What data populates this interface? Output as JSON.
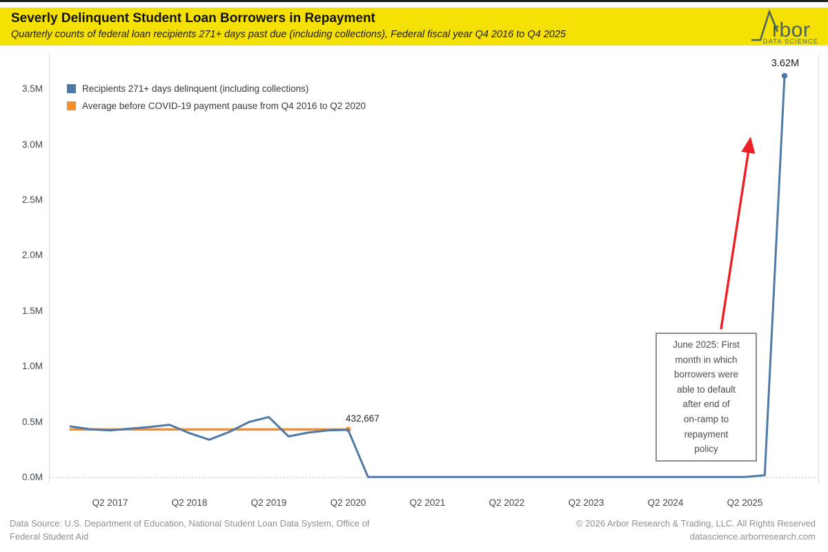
{
  "header": {
    "title": "Severly Delinquent Student Loan Borrowers in Repayment",
    "subtitle": "Quarterly counts of federal loan recipients 271+ days past due (including collections), Federal fiscal year Q4 2016 to Q4 2025",
    "background": "#F5E003",
    "logo": {
      "brand": "rbor",
      "tagline": "DATA SCIENCE",
      "color": "#4A635D"
    }
  },
  "chart_data": {
    "type": "line",
    "title": "Severly Delinquent Student Loan Borrowers in Repayment",
    "xlabel": "",
    "ylabel": "",
    "unit": "millions of recipients",
    "ylim": [
      0,
      3.7
    ],
    "grid": "zero-line only (dotted)",
    "legend_position": "top-left inside plot",
    "x": [
      "Q4 2016",
      "Q1 2017",
      "Q2 2017",
      "Q3 2017",
      "Q4 2017",
      "Q1 2018",
      "Q2 2018",
      "Q3 2018",
      "Q4 2018",
      "Q1 2019",
      "Q2 2019",
      "Q3 2019",
      "Q4 2019",
      "Q1 2020",
      "Q2 2020",
      "Q3 2020",
      "Q4 2020",
      "Q1 2021",
      "Q2 2021",
      "Q3 2021",
      "Q4 2021",
      "Q1 2022",
      "Q2 2022",
      "Q3 2022",
      "Q4 2022",
      "Q1 2023",
      "Q2 2023",
      "Q3 2023",
      "Q4 2023",
      "Q1 2024",
      "Q2 2024",
      "Q3 2024",
      "Q4 2024",
      "Q1 2025",
      "Q2 2025",
      "Q3 2025",
      "Q4 2025"
    ],
    "series": [
      {
        "name": "Recipients 271+ days delinquent (including collections)",
        "color": "#4E79A7",
        "values": [
          0.46,
          0.435,
          0.425,
          0.44,
          0.455,
          0.475,
          0.4,
          0.34,
          0.41,
          0.5,
          0.545,
          0.37,
          0.405,
          0.425,
          0.43,
          0.005,
          0.005,
          0.005,
          0.005,
          0.005,
          0.005,
          0.005,
          0.005,
          0.005,
          0.005,
          0.005,
          0.005,
          0.005,
          0.005,
          0.005,
          0.005,
          0.005,
          0.005,
          0.005,
          0.005,
          0.02,
          3.62
        ]
      },
      {
        "name": "Average before COVID-19 payment pause from Q4 2016 to Q2 2020",
        "color": "#F28E2B",
        "value": 0.432667,
        "from_index": 0,
        "to_index": 14
      }
    ],
    "yticks": [
      {
        "label": "0.0M",
        "value": 0
      },
      {
        "label": "0.5M",
        "value": 0.5
      },
      {
        "label": "1.0M",
        "value": 1
      },
      {
        "label": "1.5M",
        "value": 1.5
      },
      {
        "label": "2.0M",
        "value": 2
      },
      {
        "label": "2.5M",
        "value": 2.5
      },
      {
        "label": "3.0M",
        "value": 3
      },
      {
        "label": "3.5M",
        "value": 3.5
      }
    ],
    "xticks": [
      {
        "label": "Q2 2017",
        "index": 2
      },
      {
        "label": "Q2 2018",
        "index": 6
      },
      {
        "label": "Q2 2019",
        "index": 10
      },
      {
        "label": "Q2 2020",
        "index": 14
      },
      {
        "label": "Q2 2021",
        "index": 18
      },
      {
        "label": "Q2 2022",
        "index": 22
      },
      {
        "label": "Q2 2023",
        "index": 26
      },
      {
        "label": "Q2 2024",
        "index": 30
      },
      {
        "label": "Q2 2025",
        "index": 34
      }
    ],
    "end_label": "3.62M",
    "avg_label": "432,667"
  },
  "annotation": {
    "box_text": "June 2025: First\nmonth in which\nborrowers were\nable to default\nafter end of\non-ramp to\nrepayment\npolicy",
    "arrow_color": "#EE1F24"
  },
  "footer": {
    "source_line1": "Data Source: U.S. Department of Education, National Student Loan Data System, Office of",
    "source_line2": "Federal Student Aid",
    "copyright": "© 2026 Arbor Research & Trading, LLC. All Rights Reserved",
    "site": "datascience.arborresearch.com"
  }
}
